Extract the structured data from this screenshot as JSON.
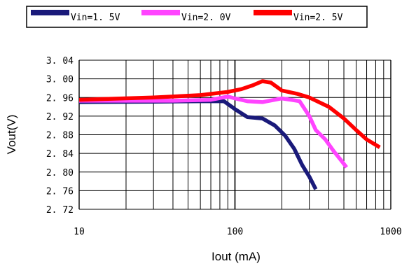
{
  "chart_data": {
    "type": "line",
    "xlabel": "Iout (mA)",
    "ylabel": "Vout(V)",
    "xscale": "log",
    "xlim": [
      10,
      1000
    ],
    "ylim": [
      2.72,
      3.04
    ],
    "xticks": [
      {
        "value": 10,
        "label": "10"
      },
      {
        "value": 100,
        "label": "100"
      },
      {
        "value": 1000,
        "label": "1000"
      }
    ],
    "yticks": [
      {
        "value": 3.04,
        "label": "3. 04"
      },
      {
        "value": 3.0,
        "label": "3. 00"
      },
      {
        "value": 2.96,
        "label": "2. 96"
      },
      {
        "value": 2.92,
        "label": "2. 92"
      },
      {
        "value": 2.88,
        "label": "2. 88"
      },
      {
        "value": 2.84,
        "label": "2. 84"
      },
      {
        "value": 2.8,
        "label": "2. 80"
      },
      {
        "value": 2.76,
        "label": "2. 76"
      },
      {
        "value": 2.72,
        "label": "2. 72"
      }
    ],
    "grid": true,
    "legend_position": "top",
    "series": [
      {
        "name": "Vin=1. 5V",
        "color": "#1a1a7a",
        "points": [
          [
            10,
            2.95
          ],
          [
            30,
            2.951
          ],
          [
            60,
            2.952
          ],
          [
            85,
            2.952
          ],
          [
            100,
            2.935
          ],
          [
            120,
            2.918
          ],
          [
            150,
            2.915
          ],
          [
            180,
            2.9
          ],
          [
            210,
            2.878
          ],
          [
            240,
            2.85
          ],
          [
            270,
            2.815
          ],
          [
            300,
            2.79
          ],
          [
            330,
            2.763
          ]
        ]
      },
      {
        "name": "Vin=2. 0V",
        "color": "#ff44ff",
        "points": [
          [
            10,
            2.953
          ],
          [
            40,
            2.953
          ],
          [
            70,
            2.955
          ],
          [
            90,
            2.962
          ],
          [
            100,
            2.958
          ],
          [
            120,
            2.952
          ],
          [
            150,
            2.95
          ],
          [
            200,
            2.958
          ],
          [
            230,
            2.955
          ],
          [
            260,
            2.952
          ],
          [
            300,
            2.92
          ],
          [
            330,
            2.89
          ],
          [
            380,
            2.87
          ],
          [
            430,
            2.845
          ],
          [
            480,
            2.825
          ],
          [
            520,
            2.81
          ]
        ]
      },
      {
        "name": "Vin=2. 5V",
        "color": "#ff0000",
        "points": [
          [
            10,
            2.955
          ],
          [
            30,
            2.96
          ],
          [
            60,
            2.965
          ],
          [
            90,
            2.972
          ],
          [
            110,
            2.978
          ],
          [
            130,
            2.986
          ],
          [
            150,
            2.995
          ],
          [
            170,
            2.992
          ],
          [
            200,
            2.975
          ],
          [
            250,
            2.968
          ],
          [
            300,
            2.96
          ],
          [
            400,
            2.94
          ],
          [
            500,
            2.915
          ],
          [
            600,
            2.89
          ],
          [
            700,
            2.87
          ],
          [
            850,
            2.853
          ]
        ]
      }
    ]
  }
}
